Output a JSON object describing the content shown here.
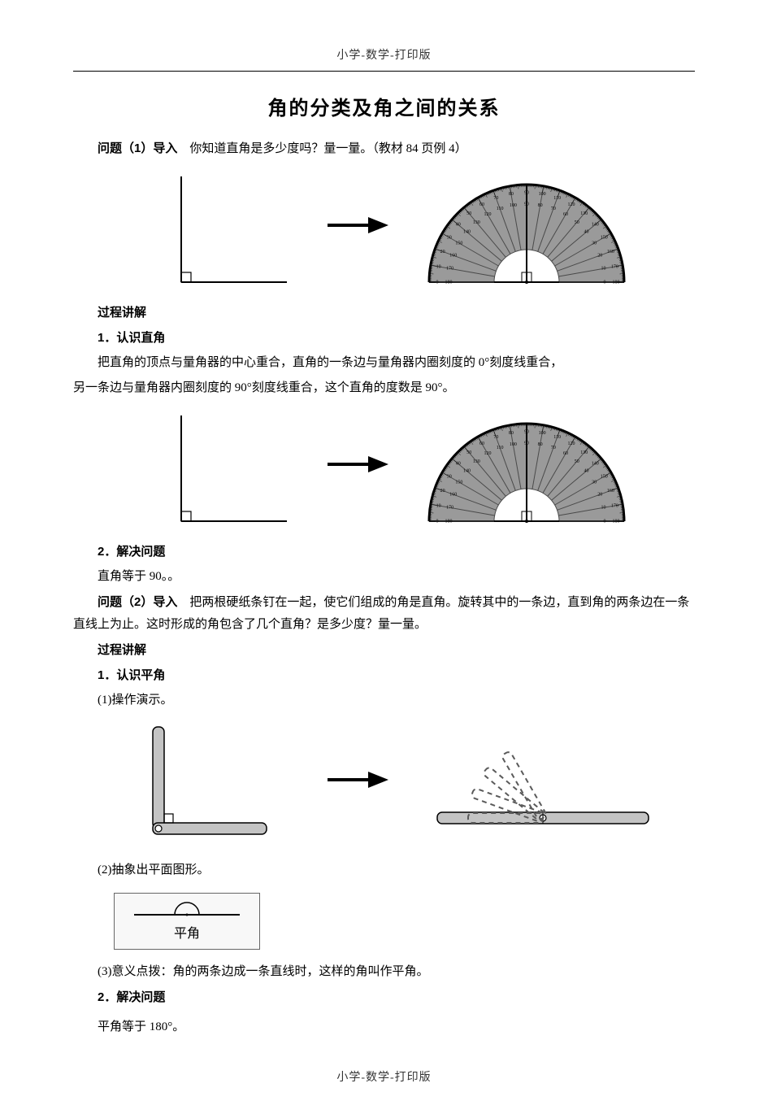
{
  "header_text": "小学-数学-打印版",
  "footer_text": "小学-数学-打印版",
  "title": "角的分类及角之间的关系",
  "q1_lead_bold": "问题（1）导入",
  "q1_lead_rest": "　你知道直角是多少度吗？量一量。（教材 84 页例 4）",
  "process_heading": "过程讲解",
  "sec1_heading": "1．认识直角",
  "sec1_p1": "把直角的顶点与量角器的中心重合，直角的一条边与量角器内圈刻度的 0°刻度线重合，",
  "sec1_p2": "另一条边与量角器内圈刻度的 90°刻度线重合，这个直角的度数是 90°。",
  "sec1_solve_heading": "2．解决问题",
  "sec1_solve_text": "直角等于 90。。",
  "q2_lead_bold": "问题（2）导入",
  "q2_lead_rest": "　把两根硬纸条钉在一起，使它们组成的角是直角。旋转其中的一条边，直到角的两条边在一条直线上为止。这时形成的角包含了几个直角？是多少度？量一量。",
  "sec2_heading": "1．认识平角",
  "sec2_sub1": "(1)操作演示。",
  "sec2_sub2": "(2)抽象出平面图形。",
  "flat_label": "平角",
  "sec2_sub3": "(3)意义点拨：角的两条边成一条直线时，这样的角叫作平角。",
  "sec2_solve_heading": "2．解决问题",
  "sec2_solve_text": "平角等于 180°。",
  "colors": {
    "text": "#000000",
    "rule": "#000000",
    "protractor_fill": "#9a9a9a",
    "protractor_dark": "#4a4a4a",
    "strip_fill": "#c4c4c4",
    "strip_stroke": "#000000",
    "dash": "#5a5a5a"
  },
  "protractor": {
    "outer_labels": [
      "0",
      "10",
      "20",
      "30",
      "40",
      "50",
      "60",
      "70",
      "80",
      "90",
      "100",
      "110",
      "120",
      "130",
      "140",
      "150",
      "160",
      "170",
      "180"
    ],
    "inner_labels": [
      "180",
      "170",
      "160",
      "150",
      "140",
      "130",
      "120",
      "110",
      "100",
      "90",
      "80",
      "70",
      "60",
      "50",
      "40",
      "30",
      "20",
      "10",
      "0"
    ],
    "tick_step_deg": 10,
    "font_size": 6
  }
}
